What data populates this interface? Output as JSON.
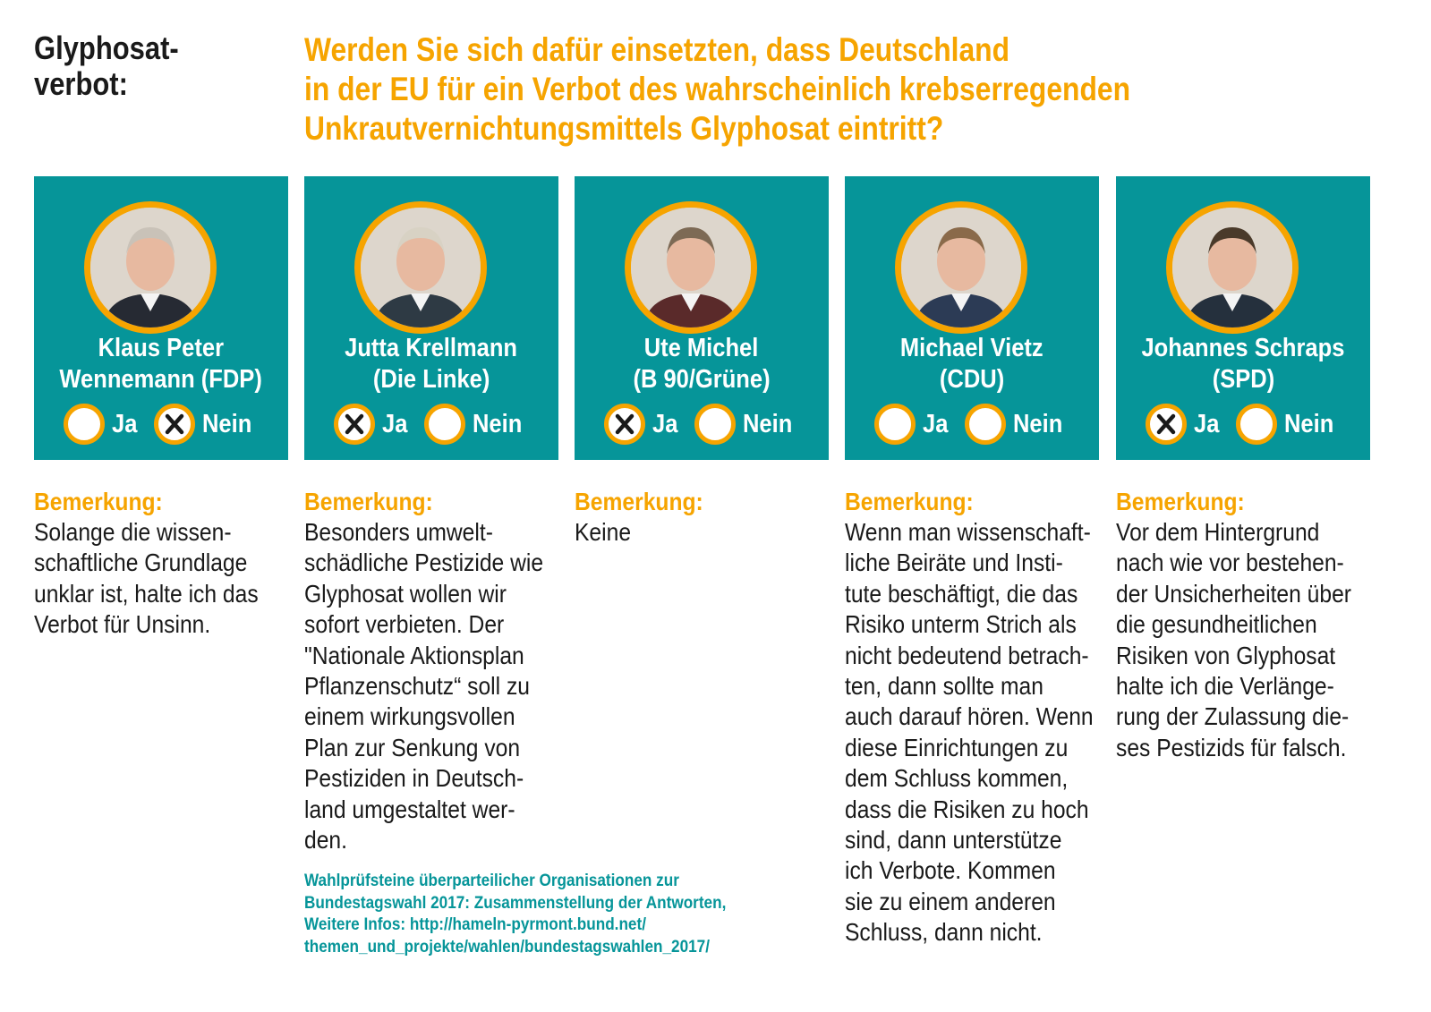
{
  "topic": [
    "Glyphosat-",
    "verbot:"
  ],
  "question": [
    "Werden Sie sich dafür einsetzten, dass Deutschland",
    "in der EU für ein Verbot des wahrscheinlich krebserregenden",
    "Unkrautvernichtungsmittels Glyphosat eintritt?"
  ],
  "option_labels": {
    "yes": "Ja",
    "no": "Nein"
  },
  "remark_label": "Bemerkung:",
  "colors": {
    "teal": "#069599",
    "orange": "#f6a400",
    "text": "#1a1a1a"
  },
  "candidates": [
    {
      "name_lines": [
        "Klaus Peter",
        "Wennemann (FDP)"
      ],
      "answer": "Nein",
      "remark_lines": [
        "Solange die wissen-",
        "schaftliche Grundlage",
        "unklar ist, halte ich das",
        "Verbot für Unsinn."
      ]
    },
    {
      "name_lines": [
        "Jutta Krellmann",
        "(Die Linke)"
      ],
      "answer": "Ja",
      "remark_lines": [
        "Besonders umwelt-",
        "schädliche Pestizide wie",
        "Glyphosat wollen wir",
        "sofort verbieten. Der",
        "\"Nationale Aktionsplan",
        "Pflanzenschutz“ soll zu",
        "einem wirkungsvollen",
        "Plan zur Senkung von",
        "Pestiziden in Deutsch-",
        "land umgestaltet wer-",
        "den."
      ]
    },
    {
      "name_lines": [
        "Ute Michel",
        "(B 90/Grüne)"
      ],
      "answer": "Ja",
      "remark_lines": [
        "Keine"
      ]
    },
    {
      "name_lines": [
        "Michael Vietz",
        "(CDU)"
      ],
      "answer": "",
      "remark_lines": [
        "Wenn man wissenschaft-",
        "liche Beiräte und Insti-",
        "tute beschäftigt, die das",
        "Risiko unterm Strich als",
        "nicht bedeutend betrach-",
        "ten, dann sollte man",
        "auch darauf hören. Wenn",
        "diese Einrichtungen zu",
        "dem Schluss kommen,",
        "dass die Risiken zu hoch",
        "sind, dann unterstütze",
        "ich Verbote. Kommen",
        "sie zu einem anderen",
        "Schluss, dann nicht."
      ]
    },
    {
      "name_lines": [
        "Johannes Schraps",
        "(SPD)"
      ],
      "answer": "Ja",
      "remark_lines": [
        "Vor dem Hintergrund",
        "nach wie vor bestehen-",
        "der Unsicherheiten über",
        "die gesundheitlichen",
        "Risiken von Glyphosat",
        "halte ich die Verlänge-",
        "rung der Zulassung die-",
        "ses Pestizids für falsch."
      ]
    }
  ],
  "source": [
    "Wahlprüfsteine überparteilicher Organisationen zur",
    "Bundestagswahl 2017: Zusammenstellung der Antworten,",
    "Weitere Infos: http://hameln-pyrmont.bund.net/",
    "themen_und_projekte/wahlen/bundestagswahlen_2017/"
  ]
}
